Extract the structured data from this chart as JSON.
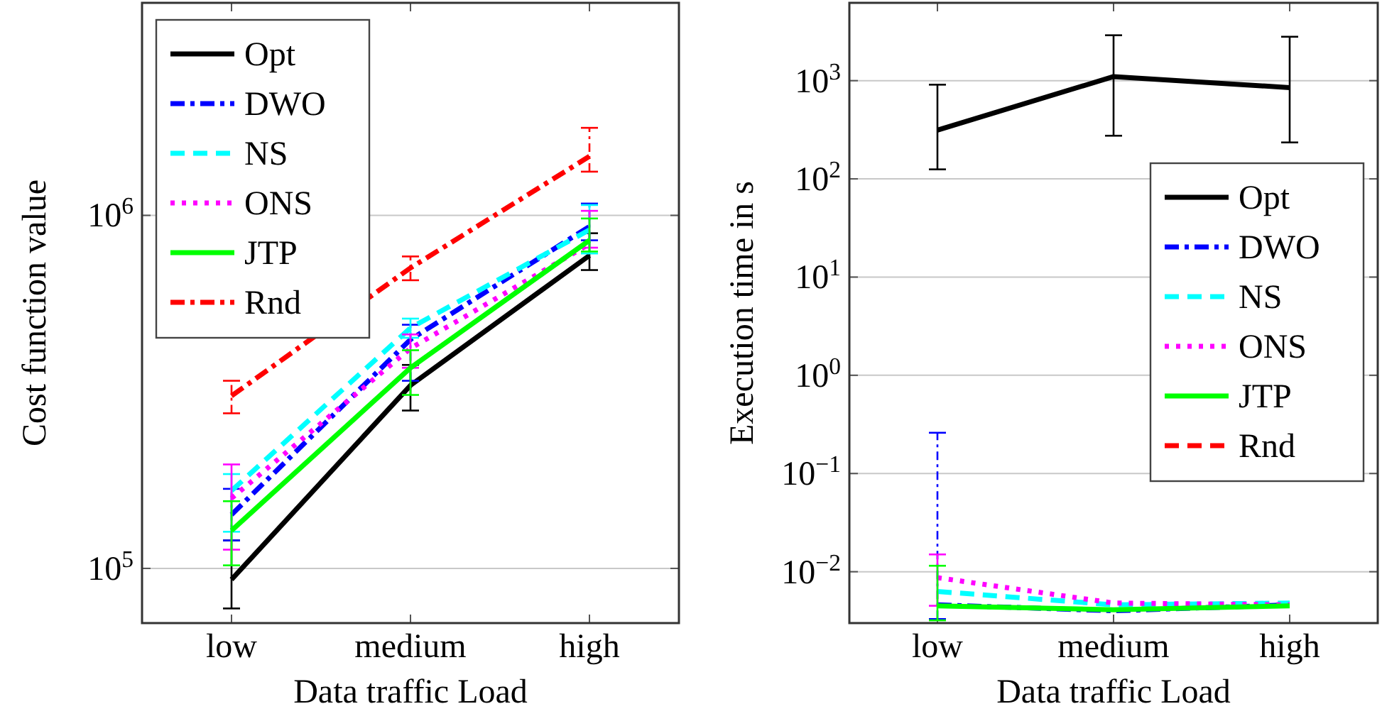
{
  "chart_data": [
    {
      "type": "line",
      "xlabel": "Data traffic Load",
      "ylabel": "Cost function value",
      "categories": [
        "low",
        "medium",
        "high"
      ],
      "log": "y",
      "ylim": [
        70000,
        4000000
      ],
      "yticks": [
        {
          "value": 100000,
          "label": "10$^{5}$"
        },
        {
          "value": 1000000,
          "label": "10$^{6}$"
        }
      ],
      "grid": "y",
      "legend": "top left",
      "series": [
        {
          "name": "Opt",
          "color": "#000000",
          "line_style": "solid",
          "values": [
            93000,
            330000,
            770000
          ],
          "errors": [
            [
              77000,
              120000
            ],
            [
              280000,
              377000
            ],
            [
              700000,
              890000
            ]
          ]
        },
        {
          "name": "DWO",
          "color": "#0000ff",
          "line_style": "dashdot",
          "values": [
            142000,
            445000,
            930000
          ],
          "errors": [
            [
              120000,
              168000
            ],
            [
              340000,
              490000
            ],
            [
              850000,
              1080000
            ]
          ]
        },
        {
          "name": "NS",
          "color": "#00ffff",
          "line_style": "dashed",
          "values": [
            166000,
            480000,
            910000
          ],
          "errors": [
            [
              127000,
              185000
            ],
            [
              450000,
              510000
            ],
            [
              780000,
              1070000
            ]
          ]
        },
        {
          "name": "ONS",
          "color": "#ff00ff",
          "line_style": "dotted",
          "values": [
            158000,
            420000,
            830000
          ],
          "errors": [
            [
              113000,
              197000
            ],
            [
              370000,
              460000
            ],
            [
              810000,
              1030000
            ]
          ]
        },
        {
          "name": "JTP",
          "color": "#00ff00",
          "line_style": "solid",
          "values": [
            128000,
            370000,
            850000
          ],
          "errors": [
            [
              102000,
              155000
            ],
            [
              310000,
              415000
            ],
            [
              790000,
              980000
            ]
          ]
        },
        {
          "name": "Rnd",
          "color": "#ff0000",
          "line_style": "dashdot",
          "values": [
            308000,
            710000,
            1470000
          ],
          "errors": [
            [
              275000,
              340000
            ],
            [
              655000,
              765000
            ],
            [
              1330000,
              1770000
            ]
          ]
        }
      ]
    },
    {
      "type": "line",
      "xlabel": "Data traffic Load",
      "ylabel": "Execution time in s",
      "categories": [
        "low",
        "medium",
        "high"
      ],
      "log": "y",
      "ylim": [
        0.003,
        6200
      ],
      "yticks": [
        {
          "value": 0.01,
          "label": "10$^{−2}$"
        },
        {
          "value": 0.1,
          "label": "10$^{−1}$"
        },
        {
          "value": 1,
          "label": "10$^{0}$"
        },
        {
          "value": 10,
          "label": "10$^{1}$"
        },
        {
          "value": 100,
          "label": "10$^{2}$"
        },
        {
          "value": 1000,
          "label": "10$^{3}$"
        }
      ],
      "grid": "y",
      "legend": "right",
      "series": [
        {
          "name": "Opt",
          "color": "#000000",
          "line_style": "solid",
          "values": [
            314,
            1100,
            850
          ],
          "errors": [
            [
              125,
              910
            ],
            [
              275,
              2900
            ],
            [
              235,
              2800
            ]
          ]
        },
        {
          "name": "DWO",
          "color": "#0000ff",
          "line_style": "dashdot",
          "values": [
            0.0046,
            0.004,
            0.0046
          ],
          "errors": [
            [
              0.0033,
              0.26
            ],
            null,
            null
          ]
        },
        {
          "name": "NS",
          "color": "#00ffff",
          "line_style": "dashed",
          "values": [
            0.0063,
            0.0046,
            0.0048
          ]
        },
        {
          "name": "ONS",
          "color": "#ff00ff",
          "line_style": "dotted",
          "values": [
            0.0087,
            0.0048,
            0.0046
          ],
          "errors": [
            [
              0.0045,
              0.015
            ],
            null,
            null
          ]
        },
        {
          "name": "JTP",
          "color": "#00ff00",
          "line_style": "solid",
          "values": [
            0.0045,
            0.0041,
            0.0045
          ],
          "errors": [
            [
              0.0032,
              0.0115
            ],
            null,
            null
          ]
        },
        {
          "name": "Rnd",
          "color": "#ff0000",
          "line_style": "dashed",
          "values": [
            null,
            null,
            null
          ]
        }
      ]
    }
  ]
}
